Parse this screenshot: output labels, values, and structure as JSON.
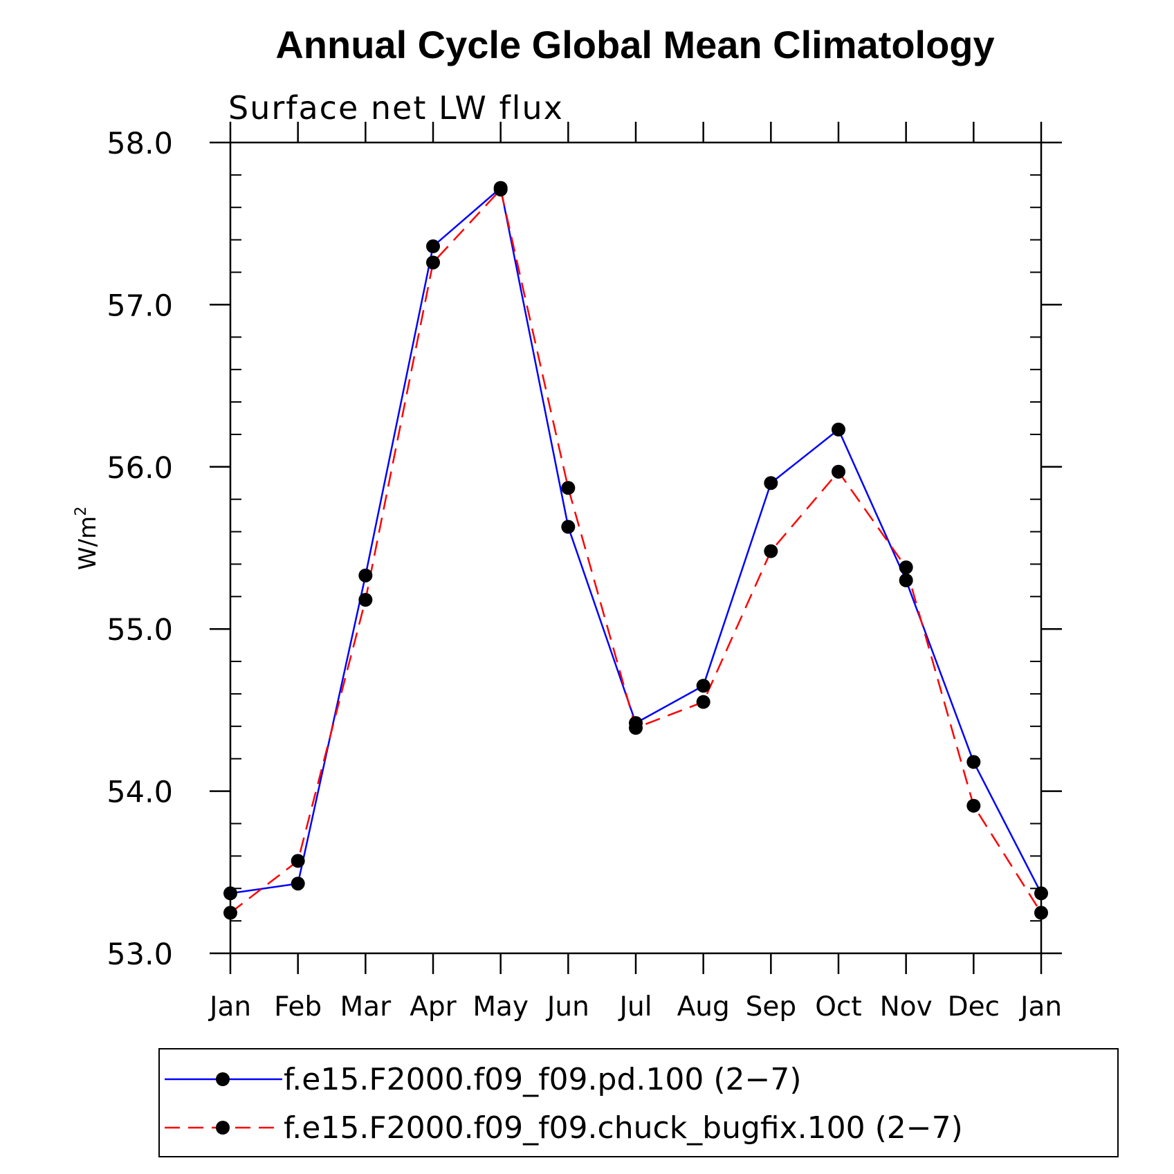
{
  "chart_data": {
    "type": "line",
    "title": "Annual Cycle Global Mean Climatology",
    "subtitle": "Surface net LW flux",
    "ylabel": "W/m",
    "ylabel_sup": "2",
    "xlabel": "",
    "categories": [
      "Jan",
      "Feb",
      "Mar",
      "Apr",
      "May",
      "Jun",
      "Jul",
      "Aug",
      "Sep",
      "Oct",
      "Nov",
      "Dec",
      "Jan"
    ],
    "ylim": [
      53.0,
      58.0
    ],
    "yticks": [
      "53.0",
      "54.0",
      "55.0",
      "56.0",
      "57.0",
      "58.0"
    ],
    "grid": false,
    "legend_position": "bottom",
    "series": [
      {
        "name": "f.e15.F2000.f09_f09.pd.100 (2−7)",
        "color": "#0000ff",
        "dash": "solid",
        "marker": "filled-circle",
        "values": [
          53.37,
          53.43,
          55.33,
          57.36,
          57.72,
          55.63,
          54.42,
          54.65,
          55.9,
          56.23,
          55.3,
          54.18,
          53.37
        ]
      },
      {
        "name": "f.e15.F2000.f09_f09.chuck_bugfix.100 (2−7)",
        "color": "#ff0000",
        "dash": "dashed",
        "marker": "filled-circle",
        "values": [
          53.25,
          53.57,
          55.18,
          57.26,
          57.71,
          55.87,
          54.39,
          54.55,
          55.48,
          55.97,
          55.38,
          53.91,
          53.25
        ]
      }
    ]
  }
}
